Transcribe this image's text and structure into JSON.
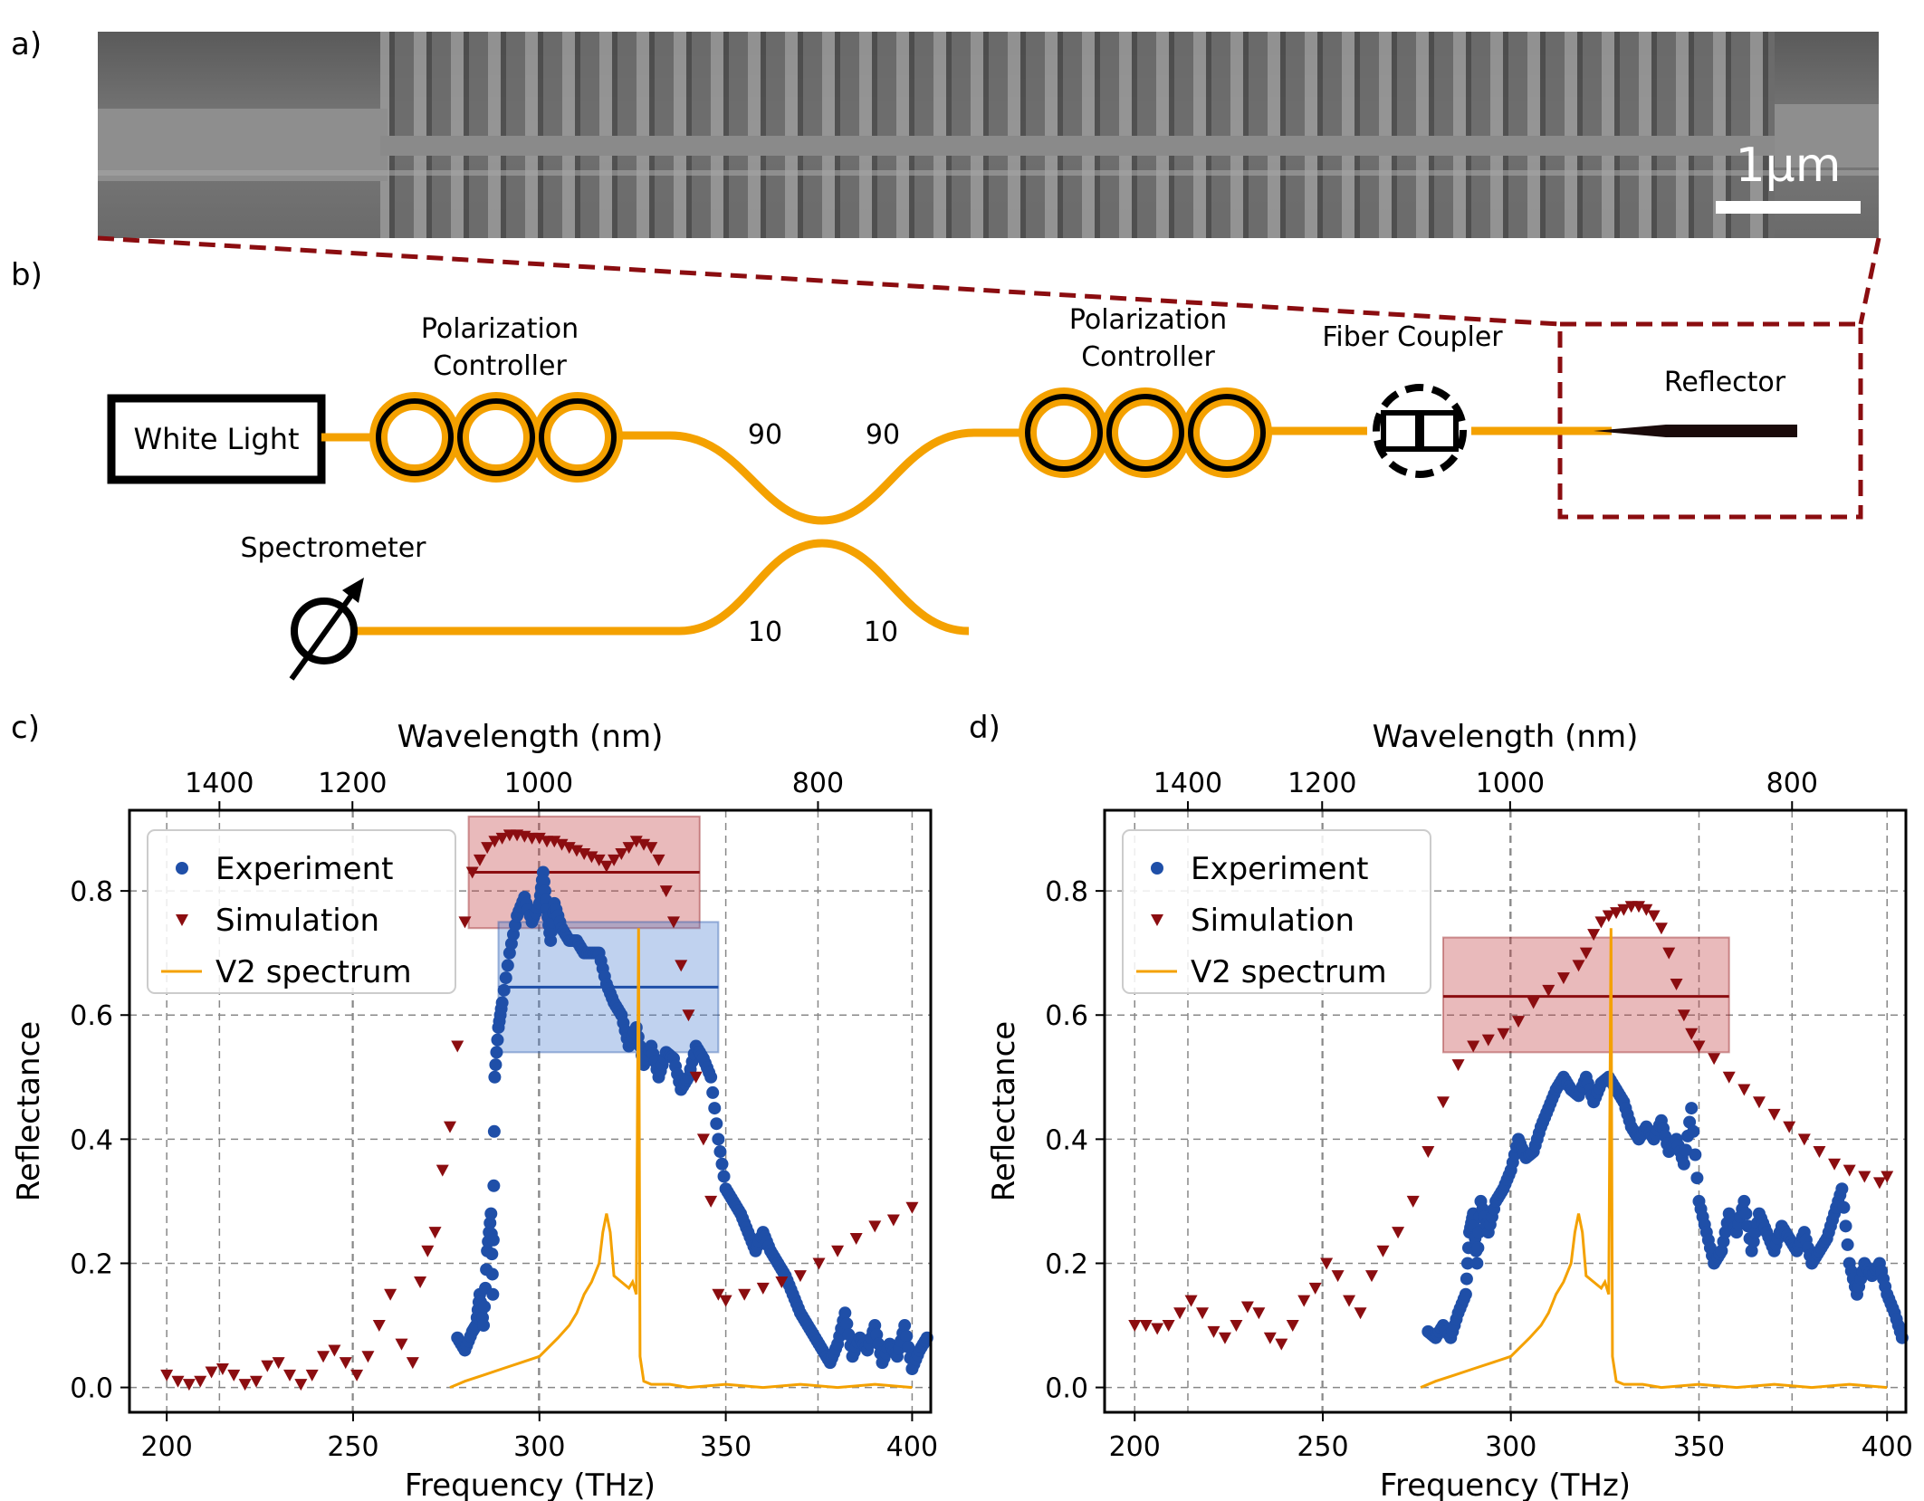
{
  "panel_labels": {
    "a": "a)",
    "b": "b)",
    "c": "c)",
    "d": "d)"
  },
  "sem": {
    "scale_bar_label": "1μm"
  },
  "setup": {
    "white_light": "White Light",
    "pol_controller_1": [
      "Polarization",
      "Controller"
    ],
    "pol_controller_2": [
      "Polarization",
      "Controller"
    ],
    "fiber_coupler": "Fiber Coupler",
    "reflector": "Reflector",
    "spectrometer": "Spectrometer",
    "split_top_left": "90",
    "split_top_right": "90",
    "split_bottom_left": "10",
    "split_bottom_right": "10"
  },
  "colors": {
    "experiment": "#1f4fa8",
    "simulation": "#8b0d10",
    "v2": "#f4a100",
    "fiber": "#f4a100",
    "dashed_box": "#8b0d10"
  },
  "chart_data": [
    {
      "panel": "c",
      "type": "scatter",
      "xlabel": "Frequency (THz)",
      "ylabel": "Reflectance",
      "top_xlabel": "Wavelength (nm)",
      "xlim": [
        190,
        405
      ],
      "ylim": [
        -0.04,
        0.93
      ],
      "xticks": [
        200,
        250,
        300,
        350,
        400
      ],
      "xtick_labels": [
        "200",
        "250",
        "300",
        "350",
        "400"
      ],
      "yticks": [
        0.0,
        0.2,
        0.4,
        0.6,
        0.8
      ],
      "ytick_labels": [
        "0.0",
        "0.2",
        "0.4",
        "0.6",
        "0.8"
      ],
      "top_ticks_nm": [
        1400,
        1200,
        1000,
        800
      ],
      "top_tick_labels": [
        "1400",
        "1200",
        "1000",
        "800"
      ],
      "legend": [
        "Experiment",
        "Simulation",
        "V2 spectrum"
      ],
      "series": [
        {
          "name": "Experiment",
          "marker": "circle",
          "x": [
            278,
            280,
            282,
            283,
            284,
            285,
            286,
            287,
            287.5,
            288,
            289,
            290,
            292,
            294,
            296,
            298,
            300,
            301,
            302,
            303,
            304,
            306,
            308,
            310,
            312,
            314,
            316,
            318,
            320,
            322,
            324,
            326,
            328,
            330,
            332,
            334,
            336,
            338,
            340,
            342,
            344,
            346,
            348,
            350,
            352,
            354,
            356,
            358,
            360,
            362,
            364,
            366,
            368,
            370,
            372,
            374,
            376,
            378,
            380,
            382,
            384,
            386,
            388,
            390,
            392,
            394,
            396,
            398,
            400,
            402,
            404
          ],
          "y": [
            0.08,
            0.06,
            0.09,
            0.1,
            0.15,
            0.1,
            0.22,
            0.28,
            0.15,
            0.5,
            0.58,
            0.62,
            0.7,
            0.76,
            0.79,
            0.75,
            0.78,
            0.83,
            0.77,
            0.72,
            0.78,
            0.74,
            0.72,
            0.72,
            0.7,
            0.7,
            0.7,
            0.65,
            0.62,
            0.6,
            0.55,
            0.58,
            0.52,
            0.55,
            0.5,
            0.54,
            0.53,
            0.48,
            0.5,
            0.55,
            0.53,
            0.5,
            0.4,
            0.32,
            0.3,
            0.28,
            0.25,
            0.22,
            0.25,
            0.22,
            0.2,
            0.18,
            0.15,
            0.12,
            0.1,
            0.08,
            0.06,
            0.04,
            0.07,
            0.12,
            0.05,
            0.08,
            0.06,
            0.1,
            0.04,
            0.07,
            0.05,
            0.1,
            0.03,
            0.06,
            0.08
          ]
        },
        {
          "name": "Simulation",
          "marker": "triangle-down",
          "x": [
            200,
            203,
            206,
            209,
            212,
            215,
            218,
            221,
            224,
            227,
            230,
            233,
            236,
            239,
            242,
            245,
            248,
            251,
            254,
            257,
            260,
            263,
            266,
            268,
            270,
            272,
            274,
            276,
            278,
            280,
            282,
            284,
            286,
            288,
            290,
            292,
            294,
            296,
            298,
            300,
            302,
            304,
            306,
            308,
            310,
            312,
            314,
            316,
            318,
            320,
            322,
            324,
            326,
            328,
            330,
            332,
            334,
            336,
            338,
            340,
            342,
            344,
            346,
            348,
            350,
            355,
            360,
            365,
            370,
            375,
            380,
            385,
            390,
            395,
            400
          ],
          "y": [
            0.02,
            0.01,
            0.005,
            0.01,
            0.025,
            0.03,
            0.02,
            0.005,
            0.01,
            0.035,
            0.04,
            0.02,
            0.005,
            0.02,
            0.05,
            0.06,
            0.04,
            0.02,
            0.05,
            0.1,
            0.15,
            0.07,
            0.04,
            0.17,
            0.22,
            0.25,
            0.35,
            0.42,
            0.55,
            0.75,
            0.83,
            0.85,
            0.87,
            0.88,
            0.885,
            0.89,
            0.89,
            0.888,
            0.885,
            0.885,
            0.88,
            0.88,
            0.875,
            0.87,
            0.865,
            0.86,
            0.855,
            0.85,
            0.84,
            0.85,
            0.86,
            0.87,
            0.88,
            0.875,
            0.87,
            0.85,
            0.8,
            0.75,
            0.68,
            0.6,
            0.5,
            0.4,
            0.3,
            0.15,
            0.14,
            0.15,
            0.16,
            0.17,
            0.18,
            0.2,
            0.22,
            0.24,
            0.26,
            0.27,
            0.29
          ]
        },
        {
          "name": "V2 spectrum",
          "marker": "line",
          "x": [
            276,
            280,
            285,
            290,
            295,
            300,
            305,
            308,
            310,
            312,
            314,
            316,
            317,
            318,
            319,
            320,
            322,
            324,
            325,
            326,
            326.6,
            327,
            328,
            330,
            335,
            340,
            350,
            360,
            370,
            380,
            390,
            400
          ],
          "y": [
            0.0,
            0.01,
            0.02,
            0.03,
            0.04,
            0.05,
            0.08,
            0.1,
            0.12,
            0.15,
            0.17,
            0.2,
            0.25,
            0.28,
            0.25,
            0.18,
            0.17,
            0.16,
            0.17,
            0.15,
            0.74,
            0.05,
            0.01,
            0.005,
            0.005,
            0.0,
            0.005,
            0.0,
            0.005,
            0.0,
            0.005,
            0.0
          ]
        }
      ],
      "bands": [
        {
          "name": "Simulation",
          "x": [
            281,
            343
          ],
          "center": 0.83,
          "y": [
            0.74,
            0.92
          ]
        },
        {
          "name": "Experiment",
          "x": [
            289,
            348
          ],
          "center": 0.645,
          "y": [
            0.54,
            0.75
          ]
        }
      ]
    },
    {
      "panel": "d",
      "type": "scatter",
      "xlabel": "Frequency (THz)",
      "ylabel": "Reflectance",
      "top_xlabel": "Wavelength (nm)",
      "xlim": [
        192,
        405
      ],
      "ylim": [
        -0.04,
        0.93
      ],
      "xticks": [
        200,
        250,
        300,
        350,
        400
      ],
      "xtick_labels": [
        "200",
        "250",
        "300",
        "350",
        "400"
      ],
      "yticks": [
        0.0,
        0.2,
        0.4,
        0.6,
        0.8
      ],
      "ytick_labels": [
        "0.0",
        "0.2",
        "0.4",
        "0.6",
        "0.8"
      ],
      "top_ticks_nm": [
        1400,
        1200,
        1000,
        800
      ],
      "top_tick_labels": [
        "1400",
        "1200",
        "1000",
        "800"
      ],
      "legend": [
        "Experiment",
        "Simulation",
        "V2 spectrum"
      ],
      "series": [
        {
          "name": "Experiment",
          "marker": "circle",
          "x": [
            278,
            280,
            282,
            284,
            286,
            288,
            289,
            290,
            291,
            292,
            294,
            296,
            298,
            300,
            302,
            304,
            306,
            308,
            310,
            312,
            314,
            316,
            318,
            320,
            322,
            324,
            326,
            328,
            330,
            332,
            334,
            336,
            338,
            340,
            342,
            344,
            346,
            348,
            350,
            352,
            354,
            356,
            358,
            360,
            362,
            364,
            366,
            368,
            370,
            372,
            374,
            376,
            378,
            380,
            382,
            384,
            386,
            388,
            390,
            392,
            394,
            396,
            398,
            400,
            402,
            404
          ],
          "y": [
            0.09,
            0.08,
            0.1,
            0.08,
            0.12,
            0.15,
            0.25,
            0.28,
            0.2,
            0.3,
            0.25,
            0.3,
            0.32,
            0.35,
            0.4,
            0.37,
            0.38,
            0.42,
            0.45,
            0.48,
            0.5,
            0.48,
            0.47,
            0.5,
            0.46,
            0.49,
            0.5,
            0.48,
            0.46,
            0.42,
            0.4,
            0.42,
            0.4,
            0.43,
            0.38,
            0.4,
            0.36,
            0.45,
            0.3,
            0.25,
            0.2,
            0.22,
            0.28,
            0.25,
            0.3,
            0.22,
            0.28,
            0.25,
            0.22,
            0.26,
            0.24,
            0.22,
            0.25,
            0.2,
            0.22,
            0.24,
            0.28,
            0.32,
            0.2,
            0.15,
            0.2,
            0.18,
            0.2,
            0.15,
            0.12,
            0.08
          ]
        },
        {
          "name": "Simulation",
          "marker": "triangle-down",
          "x": [
            200,
            203,
            206,
            209,
            212,
            215,
            218,
            221,
            224,
            227,
            230,
            233,
            236,
            239,
            242,
            245,
            248,
            251,
            254,
            257,
            260,
            263,
            266,
            270,
            274,
            278,
            282,
            286,
            290,
            294,
            298,
            302,
            306,
            310,
            314,
            318,
            320,
            322,
            324,
            326,
            328,
            330,
            332,
            334,
            336,
            338,
            340,
            342,
            344,
            346,
            348,
            350,
            354,
            358,
            362,
            366,
            370,
            374,
            378,
            382,
            386,
            390,
            394,
            398,
            400
          ],
          "y": [
            0.1,
            0.1,
            0.095,
            0.1,
            0.12,
            0.14,
            0.12,
            0.09,
            0.08,
            0.1,
            0.13,
            0.12,
            0.08,
            0.07,
            0.1,
            0.14,
            0.16,
            0.2,
            0.18,
            0.14,
            0.12,
            0.18,
            0.22,
            0.25,
            0.3,
            0.38,
            0.46,
            0.52,
            0.55,
            0.56,
            0.57,
            0.59,
            0.62,
            0.64,
            0.66,
            0.68,
            0.7,
            0.73,
            0.75,
            0.76,
            0.765,
            0.77,
            0.775,
            0.775,
            0.77,
            0.76,
            0.74,
            0.7,
            0.65,
            0.6,
            0.57,
            0.55,
            0.53,
            0.5,
            0.48,
            0.46,
            0.44,
            0.42,
            0.4,
            0.38,
            0.36,
            0.35,
            0.34,
            0.33,
            0.34
          ]
        },
        {
          "name": "V2 spectrum",
          "marker": "line",
          "x": [
            276,
            280,
            285,
            290,
            295,
            300,
            305,
            308,
            310,
            312,
            314,
            316,
            317,
            318,
            319,
            320,
            322,
            324,
            325,
            326,
            326.6,
            327,
            328,
            330,
            335,
            340,
            350,
            360,
            370,
            380,
            390,
            400
          ],
          "y": [
            0.0,
            0.01,
            0.02,
            0.03,
            0.04,
            0.05,
            0.08,
            0.1,
            0.12,
            0.15,
            0.17,
            0.2,
            0.25,
            0.28,
            0.25,
            0.18,
            0.17,
            0.16,
            0.17,
            0.15,
            0.74,
            0.05,
            0.01,
            0.005,
            0.005,
            0.0,
            0.005,
            0.0,
            0.005,
            0.0,
            0.005,
            0.0
          ]
        }
      ],
      "bands": [
        {
          "name": "Simulation",
          "x": [
            282,
            358
          ],
          "center": 0.63,
          "y": [
            0.54,
            0.725
          ]
        }
      ]
    }
  ]
}
